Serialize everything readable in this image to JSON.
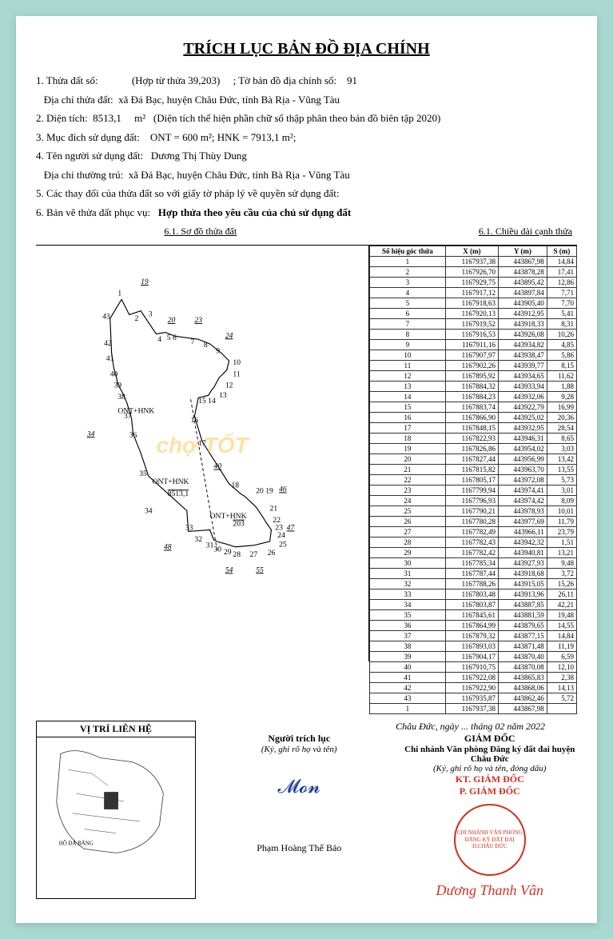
{
  "title": "TRÍCH LỤC BẢN ĐỒ ĐỊA CHÍNH",
  "doc": {
    "line1_label": "1. Thửa đất số:",
    "line1_merge": "(Hợp từ thửa 39,203)",
    "line1_map": "; Tờ bản đồ địa chính số:",
    "line1_mapno": "91",
    "addr_label": "Địa chỉ thửa đất:",
    "addr": "xã Đá Bạc, huyện Châu Đức, tỉnh Bà Rịa - Vũng Tàu",
    "area_label": "2. Diện tích:",
    "area": "8513,1",
    "area_unit": "m²",
    "area_note": "(Diện tích thể hiện phần chữ số thập phân theo bản đồ biên tập 2020)",
    "use_label": "3. Mục đích sử dụng đất:",
    "use": "ONT = 600 m²; HNK = 7913,1 m²;",
    "owner_label": "4. Tên người sử dụng đất:",
    "owner": "Dương Thị Thùy Dung",
    "res_label": "Địa chỉ thường trú:",
    "res": "xã Đá Bạc, huyện Châu Đức, tỉnh Bà Rịa - Vũng Tàu",
    "change_label": "5. Các thay đổi của thửa đất so với giấy tờ pháp lý về quyền sử dụng đất:",
    "purpose_label": "6. Bản vẽ thửa đất phục vụ:",
    "purpose": "Hợp thửa theo yêu cầu của chủ sử dụng đất",
    "diag_title": "6.1. Sơ đồ thửa đất",
    "table_title": "6.1. Chiều dài cạnh thửa"
  },
  "watermark": "chợ TỐT",
  "loc_title": "VỊ TRÍ LIÊN HỆ",
  "loc_lake": "HỒ ĐÁ BÀNG",
  "table": {
    "headers": [
      "Số hiệu góc thửa",
      "X (m)",
      "Y (m)",
      "S (m)"
    ],
    "rows": [
      [
        "1",
        "1167937,38",
        "443867,98",
        "14,84"
      ],
      [
        "2",
        "1167926,70",
        "443878,28",
        "17,41"
      ],
      [
        "3",
        "1167929,75",
        "443895,42",
        "12,86"
      ],
      [
        "4",
        "1167917,12",
        "443897,84",
        "7,71"
      ],
      [
        "5",
        "1167918,63",
        "443905,40",
        "7,70"
      ],
      [
        "6",
        "1167920,13",
        "443912,95",
        "5,41"
      ],
      [
        "7",
        "1167919,52",
        "443918,33",
        "8,31"
      ],
      [
        "8",
        "1167916,53",
        "443926,08",
        "10,26"
      ],
      [
        "9",
        "1167911,16",
        "443934,82",
        "4,85"
      ],
      [
        "10",
        "1167907,97",
        "443938,47",
        "5,86"
      ],
      [
        "11",
        "1167902,26",
        "443939,77",
        "8,15"
      ],
      [
        "12",
        "1167895,92",
        "443934,65",
        "11,62"
      ],
      [
        "13",
        "1167884,32",
        "443933,94",
        "1,88"
      ],
      [
        "14",
        "1167884,23",
        "443932,06",
        "9,28"
      ],
      [
        "15",
        "1167883,74",
        "443922,79",
        "16,99"
      ],
      [
        "16",
        "1167866,90",
        "443925,02",
        "20,36"
      ],
      [
        "17",
        "1167848,15",
        "443932,95",
        "28,54"
      ],
      [
        "18",
        "1167822,93",
        "443946,31",
        "8,65"
      ],
      [
        "19",
        "1167826,86",
        "443954,02",
        "3,03"
      ],
      [
        "20",
        "1167827,44",
        "443956,99",
        "13,42"
      ],
      [
        "21",
        "1167815,82",
        "443963,70",
        "13,55"
      ],
      [
        "22",
        "1167805,17",
        "443972,08",
        "5,73"
      ],
      [
        "23",
        "1167799,94",
        "443974,41",
        "3,01"
      ],
      [
        "24",
        "1167796,93",
        "443974,42",
        "8,09"
      ],
      [
        "25",
        "1167790,21",
        "443978,93",
        "10,01"
      ],
      [
        "26",
        "1167780,28",
        "443977,69",
        "11,79"
      ],
      [
        "27",
        "1167782,49",
        "443966,11",
        "23,79"
      ],
      [
        "28",
        "1167782,43",
        "443942,32",
        "1,51"
      ],
      [
        "29",
        "1167782,42",
        "443940,81",
        "13,21"
      ],
      [
        "30",
        "1167785,34",
        "443927,93",
        "9,48"
      ],
      [
        "31",
        "1167787,44",
        "443918,68",
        "3,72"
      ],
      [
        "32",
        "1167788,26",
        "443915,05",
        "15,26"
      ],
      [
        "33",
        "1167803,48",
        "443913,96",
        "26,11"
      ],
      [
        "34",
        "1167803,87",
        "443887,85",
        "42,21"
      ],
      [
        "35",
        "1167845,61",
        "443881,59",
        "19,48"
      ],
      [
        "36",
        "1167864,99",
        "443879,65",
        "14,55"
      ],
      [
        "37",
        "1167879,32",
        "443877,15",
        "14,84"
      ],
      [
        "38",
        "1167893,03",
        "443871,48",
        "11,19"
      ],
      [
        "39",
        "1167904,17",
        "443870,40",
        "6,59"
      ],
      [
        "40",
        "1167910,75",
        "443870,08",
        "12,10"
      ],
      [
        "41",
        "1167922,08",
        "443865,83",
        "2,38"
      ],
      [
        "42",
        "1167922,90",
        "443868,06",
        "14,13"
      ],
      [
        "43",
        "1167935,87",
        "443862,46",
        "5,72"
      ],
      [
        "1",
        "1167937,38",
        "443867,98",
        ""
      ]
    ]
  },
  "parcel": {
    "ont_hnk1": "ONT+HNK",
    "main_label": "ONT+HNK",
    "area_center": "8513,1",
    "ont_hnk2": "ONT+HNK",
    "sub203": "203",
    "adjacent": {
      "p19": "19",
      "p20": "20",
      "p23": "23",
      "p24": "24",
      "p34": "34",
      "p40": "40",
      "p46": "46",
      "p47": "47",
      "p48": "48",
      "p54": "54",
      "p55": "55"
    }
  },
  "sig": {
    "date": "Châu Đức, ngày ... tháng 02 năm 2022",
    "left_role": "Người trích lục",
    "left_sub": "(Ký, ghi rõ họ và tên)",
    "left_name": "Phạm Hoàng Thế Bảo",
    "right_title": "GIÁM ĐỐC",
    "right_org": "Chi nhánh Văn phòng Đăng ký đất đai huyện Châu Đức",
    "right_sub": "(Ký, ghi rõ họ và tên, đóng dấu)",
    "kt": "KT. GIÁM ĐỐC",
    "pgd": "P. GIÁM ĐỐC",
    "right_name": "Dương Thanh Vân",
    "stamp_lines": "CHI NHÁNH\nVĂN PHÒNG\nĐĂNG KÝ ĐẤT ĐAI\nH.CHÂU ĐỨC"
  }
}
